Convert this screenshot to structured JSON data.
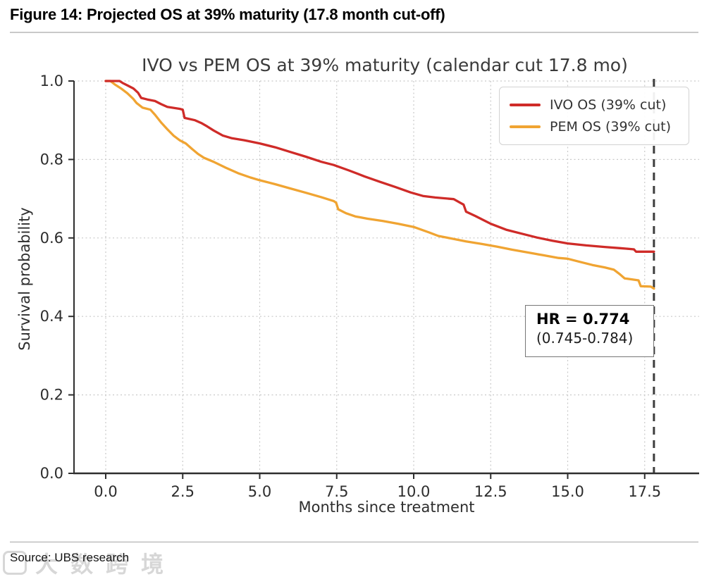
{
  "figure": {
    "title": "Figure 14: Projected OS at 39% maturity (17.8 month cut-off)"
  },
  "source": {
    "label": "Source: UBS research"
  },
  "watermark": {
    "text": "大数跨境"
  },
  "chart_data": {
    "type": "line",
    "subtype": "kaplan-meier-survival",
    "title": "IVO vs PEM OS at 39% maturity (calendar cut 17.8 mo)",
    "xlabel": "Months since treatment",
    "ylabel": "Survival probability",
    "xlim": [
      -1.1,
      19.2
    ],
    "ylim": [
      0.0,
      1.0
    ],
    "xticks": [
      0.0,
      2.5,
      5.0,
      7.5,
      10.0,
      12.5,
      15.0,
      17.5
    ],
    "xtick_labels": [
      "0.0",
      "2.5",
      "5.0",
      "7.5",
      "10.0",
      "12.5",
      "15.0",
      "17.5"
    ],
    "yticks": [
      0.0,
      0.2,
      0.4,
      0.6,
      0.8,
      1.0
    ],
    "ytick_labels": [
      "0.0",
      "0.2",
      "0.4",
      "0.6",
      "0.8",
      "1.0"
    ],
    "grid": true,
    "grid_style": "dotted",
    "grid_color": "#c9c9c9",
    "legend_position": "upper right",
    "cutoff_line": {
      "x": 17.8,
      "style": "dashed",
      "color": "#3d3d3d"
    },
    "annotation": {
      "line1": "HR = 0.774",
      "line2": "(0.745-0.784)"
    },
    "series": [
      {
        "name": "IVO OS (39% cut)",
        "color": "#cf2b28",
        "points": [
          [
            0,
            1.0
          ],
          [
            0.45,
            1.0
          ],
          [
            0.55,
            0.995
          ],
          [
            0.7,
            0.989
          ],
          [
            0.9,
            0.981
          ],
          [
            1.05,
            0.97
          ],
          [
            1.15,
            0.957
          ],
          [
            1.35,
            0.953
          ],
          [
            1.6,
            0.949
          ],
          [
            1.8,
            0.941
          ],
          [
            2.0,
            0.934
          ],
          [
            2.4,
            0.929
          ],
          [
            2.5,
            0.927
          ],
          [
            2.56,
            0.906
          ],
          [
            2.9,
            0.9
          ],
          [
            3.1,
            0.893
          ],
          [
            3.3,
            0.884
          ],
          [
            3.5,
            0.874
          ],
          [
            3.8,
            0.861
          ],
          [
            4.1,
            0.854
          ],
          [
            4.5,
            0.849
          ],
          [
            5.0,
            0.841
          ],
          [
            5.5,
            0.831
          ],
          [
            6.0,
            0.819
          ],
          [
            6.5,
            0.807
          ],
          [
            7.0,
            0.794
          ],
          [
            7.4,
            0.786
          ],
          [
            7.9,
            0.772
          ],
          [
            8.4,
            0.757
          ],
          [
            8.9,
            0.743
          ],
          [
            9.4,
            0.73
          ],
          [
            9.9,
            0.716
          ],
          [
            10.3,
            0.707
          ],
          [
            10.7,
            0.703
          ],
          [
            11.3,
            0.699
          ],
          [
            11.55,
            0.688
          ],
          [
            11.62,
            0.685
          ],
          [
            11.7,
            0.667
          ],
          [
            12.0,
            0.656
          ],
          [
            12.5,
            0.636
          ],
          [
            13.0,
            0.621
          ],
          [
            13.5,
            0.611
          ],
          [
            14.0,
            0.601
          ],
          [
            14.5,
            0.593
          ],
          [
            15.0,
            0.586
          ],
          [
            15.6,
            0.581
          ],
          [
            16.2,
            0.577
          ],
          [
            16.7,
            0.574
          ],
          [
            17.0,
            0.572
          ],
          [
            17.15,
            0.571
          ],
          [
            17.22,
            0.565
          ],
          [
            17.8,
            0.565
          ]
        ]
      },
      {
        "name": "PEM OS (39% cut)",
        "color": "#f0a432",
        "points": [
          [
            0,
            1.0
          ],
          [
            0.15,
            1.0
          ],
          [
            0.3,
            0.991
          ],
          [
            0.5,
            0.981
          ],
          [
            0.7,
            0.969
          ],
          [
            0.9,
            0.954
          ],
          [
            1.0,
            0.944
          ],
          [
            1.2,
            0.932
          ],
          [
            1.45,
            0.927
          ],
          [
            1.6,
            0.914
          ],
          [
            1.8,
            0.894
          ],
          [
            2.0,
            0.877
          ],
          [
            2.2,
            0.861
          ],
          [
            2.4,
            0.849
          ],
          [
            2.6,
            0.841
          ],
          [
            2.8,
            0.827
          ],
          [
            3.0,
            0.814
          ],
          [
            3.2,
            0.804
          ],
          [
            3.5,
            0.794
          ],
          [
            3.9,
            0.779
          ],
          [
            4.3,
            0.765
          ],
          [
            4.7,
            0.754
          ],
          [
            5.0,
            0.747
          ],
          [
            5.5,
            0.737
          ],
          [
            6.0,
            0.726
          ],
          [
            6.5,
            0.715
          ],
          [
            7.0,
            0.704
          ],
          [
            7.4,
            0.694
          ],
          [
            7.48,
            0.69
          ],
          [
            7.55,
            0.673
          ],
          [
            7.8,
            0.663
          ],
          [
            8.1,
            0.655
          ],
          [
            8.5,
            0.649
          ],
          [
            9.0,
            0.643
          ],
          [
            9.5,
            0.636
          ],
          [
            10.0,
            0.628
          ],
          [
            10.5,
            0.614
          ],
          [
            10.8,
            0.605
          ],
          [
            11.2,
            0.599
          ],
          [
            11.7,
            0.591
          ],
          [
            12.2,
            0.585
          ],
          [
            12.7,
            0.578
          ],
          [
            13.2,
            0.57
          ],
          [
            13.7,
            0.563
          ],
          [
            14.2,
            0.556
          ],
          [
            14.7,
            0.549
          ],
          [
            15.0,
            0.547
          ],
          [
            15.4,
            0.539
          ],
          [
            15.8,
            0.531
          ],
          [
            16.2,
            0.525
          ],
          [
            16.5,
            0.519
          ],
          [
            16.7,
            0.507
          ],
          [
            16.85,
            0.497
          ],
          [
            17.1,
            0.494
          ],
          [
            17.3,
            0.492
          ],
          [
            17.37,
            0.477
          ],
          [
            17.7,
            0.476
          ],
          [
            17.8,
            0.471
          ]
        ]
      }
    ]
  }
}
